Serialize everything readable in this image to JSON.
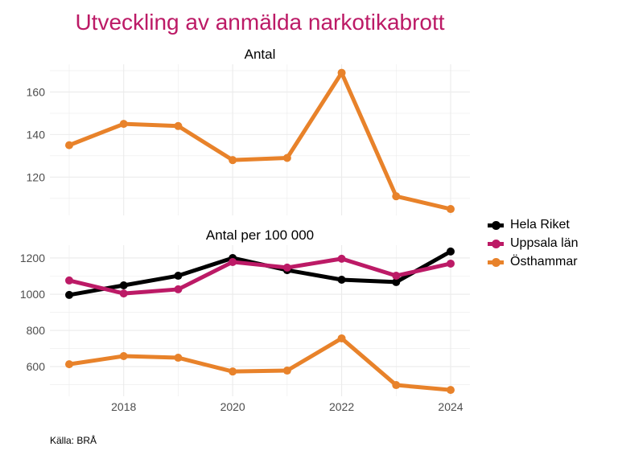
{
  "chart_data": {
    "type": "line",
    "title": "Utveckling av anmälda narkotikabrott",
    "source": "Källa: BRÅ",
    "x": [
      2017,
      2018,
      2019,
      2020,
      2021,
      2022,
      2023,
      2024
    ],
    "x_ticks": [
      "2018",
      "2020",
      "2022",
      "2024"
    ],
    "legend_position": "right",
    "panels": [
      {
        "title": "Antal",
        "ylim": [
          102,
          173
        ],
        "y_ticks": [
          "120",
          "140",
          "160"
        ],
        "series": [
          {
            "name": "Östhammar",
            "color": "#e8822a",
            "values": [
              135,
              145,
              144,
              128,
              129,
              169,
              111,
              105
            ]
          }
        ]
      },
      {
        "title": "Antal per 100 000",
        "ylim": [
          436,
          1271
        ],
        "y_ticks": [
          "600",
          "800",
          "1000",
          "1200"
        ],
        "series": [
          {
            "name": "Hela Riket",
            "color": "#000000",
            "values": [
              996,
              1049,
              1102,
              1200,
              1133,
              1080,
              1067,
              1236
            ]
          },
          {
            "name": "Uppsala län",
            "color": "#bc1a66",
            "values": [
              1076,
              1004,
              1027,
              1178,
              1147,
              1196,
              1102,
              1169
            ]
          },
          {
            "name": "Östhammar",
            "color": "#e8822a",
            "values": [
              613,
              658,
              649,
              573,
              578,
              756,
              498,
              471
            ]
          }
        ]
      }
    ],
    "legend": [
      {
        "name": "Hela Riket",
        "color": "#000000"
      },
      {
        "name": "Uppsala län",
        "color": "#bc1a66"
      },
      {
        "name": "Östhammar",
        "color": "#e8822a"
      }
    ]
  }
}
